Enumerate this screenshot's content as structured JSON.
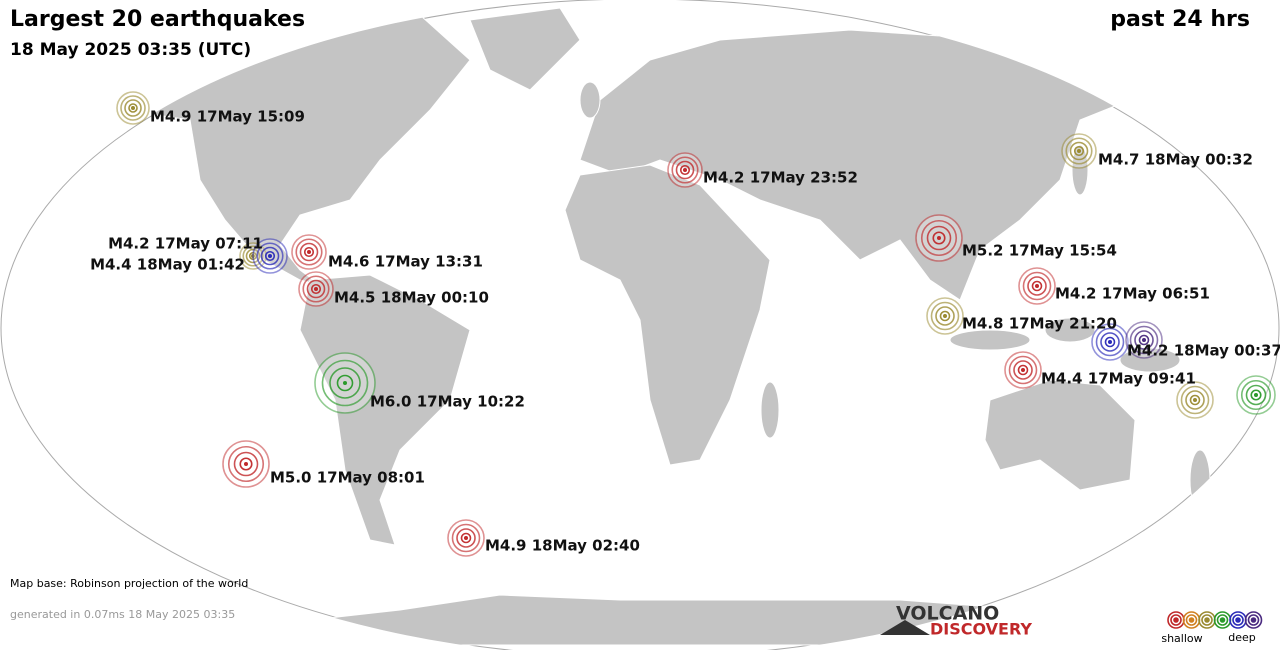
{
  "header": {
    "title": "Largest 20 earthquakes",
    "subtitle": "18 May 2025 03:35 (UTC)",
    "period": "past 24 hrs"
  },
  "quakes": [
    {
      "label": "M4.9 17May 15:09",
      "color": "#9a8a30"
    },
    {
      "label": "M4.7 18May 00:32",
      "color": "#9a8a30"
    },
    {
      "label": "M4.2 17May 23:52",
      "color": "#c0282a"
    },
    {
      "label": "M4.2 17May 07:11",
      "color": "#9a8a30"
    },
    {
      "label": "M4.4 18May 01:42",
      "color": "#2a2ab8"
    },
    {
      "label": "M4.6 17May 13:31",
      "color": "#c0282a"
    },
    {
      "label": "M4.5 18May 00:10",
      "color": "#c0282a"
    },
    {
      "label": "M5.2 17May 15:54",
      "color": "#c0282a"
    },
    {
      "label": "M4.2 17May 06:51",
      "color": "#c0282a"
    },
    {
      "label": "M4.8 17May 21:20",
      "color": "#9a8a30"
    },
    {
      "label": "M4.2 18May 00:37",
      "color": "#4a2a80"
    },
    {
      "label": "M4.4 17May 09:41",
      "color": "#c0282a"
    },
    {
      "label": "M6.0 17May 10:22",
      "color": "#2a9a2a"
    },
    {
      "label": "M5.0 17May 08:01",
      "color": "#c0282a"
    },
    {
      "label": "M4.9 18May 02:40",
      "color": "#c0282a"
    }
  ],
  "unlabeled_markers": [
    {
      "color": "#2a2ab8"
    },
    {
      "color": "#9a8a30"
    },
    {
      "color": "#2a9a2a"
    }
  ],
  "footer": {
    "map_base": "Map base: Robinson projection of the world",
    "generated": "generated in 0.07ms 18 May 2025 03:35"
  },
  "logo": {
    "line1": "VOLCANO",
    "line2": "DISCOVERY"
  },
  "legend": {
    "shallow": "shallow",
    "deep": "deep"
  }
}
